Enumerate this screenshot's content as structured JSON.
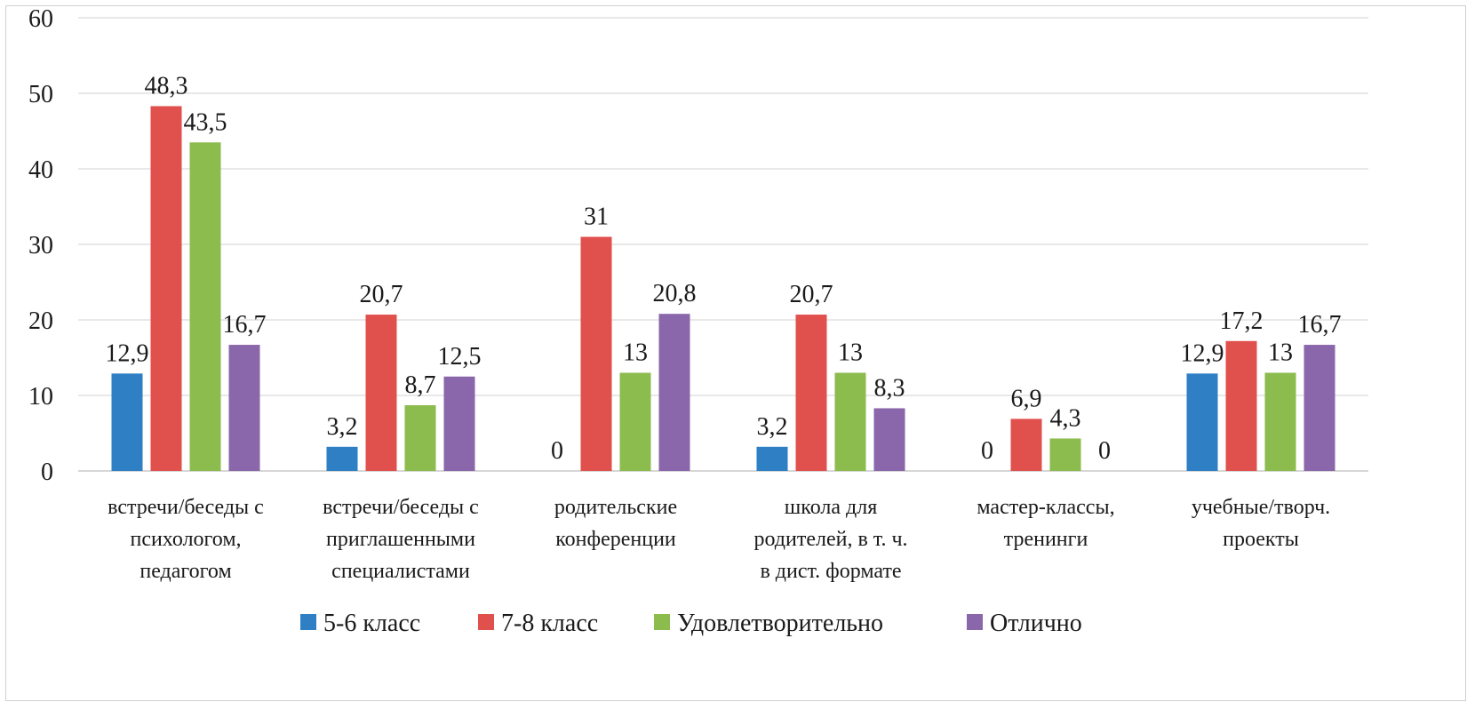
{
  "chart_data": {
    "type": "bar",
    "ylim": [
      0,
      60
    ],
    "yticks": [
      0,
      10,
      20,
      30,
      40,
      50,
      60
    ],
    "ytick_labels": [
      "0",
      "10",
      "20",
      "30",
      "40",
      "50",
      "60"
    ],
    "grid": true,
    "legend_position": "bottom",
    "categories": [
      [
        "встречи/беседы с",
        "психологом,",
        "педагогом"
      ],
      [
        "встречи/беседы с",
        "приглашенными",
        "специалистами"
      ],
      [
        "родительские",
        "конференции"
      ],
      [
        "школа для",
        "родителей, в т. ч.",
        "в дист. формате"
      ],
      [
        "мастер-классы,",
        "тренинги"
      ],
      [
        "учебные/творч.",
        "проекты"
      ]
    ],
    "series": [
      {
        "name": "5-6 класс",
        "color": "#2e7fc4",
        "values": [
          12.9,
          3.2,
          0,
          3.2,
          0,
          12.9
        ],
        "labels": [
          "12,9",
          "3,2",
          "0",
          "3,2",
          "0",
          "12,9"
        ]
      },
      {
        "name": "7-8 класс",
        "color": "#e0504c",
        "values": [
          48.3,
          20.7,
          31,
          20.7,
          6.9,
          17.2
        ],
        "labels": [
          "48,3",
          "20,7",
          "31",
          "20,7",
          "6,9",
          "17,2"
        ]
      },
      {
        "name": "Удовлетворительно",
        "color": "#8cbb4e",
        "values": [
          43.5,
          8.7,
          13,
          13,
          4.3,
          13
        ],
        "labels": [
          "43,5",
          "8,7",
          "13",
          "13",
          "4,3",
          "13"
        ]
      },
      {
        "name": "Отлично",
        "color": "#8a66aa",
        "values": [
          16.7,
          12.5,
          20.8,
          8.3,
          0,
          16.7
        ],
        "labels": [
          "16,7",
          "12,5",
          "20,8",
          "8,3",
          "0",
          "16,7"
        ]
      }
    ]
  }
}
